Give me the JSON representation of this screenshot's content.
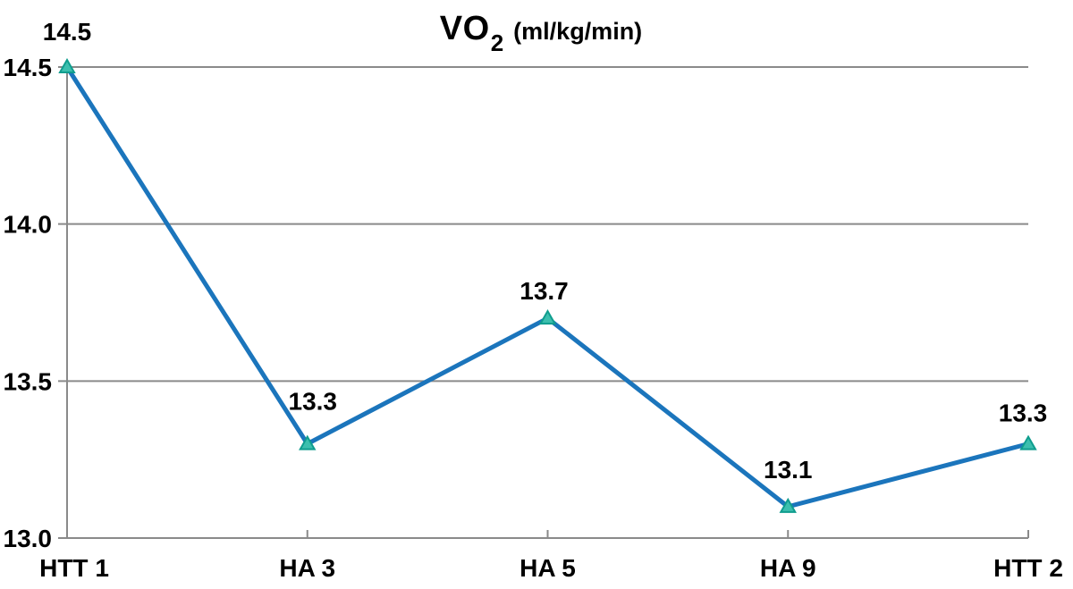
{
  "chart": {
    "title_main": "VO",
    "title_sub": "2",
    "title_unit": "(ml/kg/min)"
  },
  "chart_data": {
    "type": "line",
    "title": "VO2 (ml/kg/min)",
    "categories": [
      "HTT 1",
      "HA 3",
      "HA 5",
      "HA 9",
      "HTT 2"
    ],
    "values": [
      14.5,
      13.3,
      13.7,
      13.1,
      13.3
    ],
    "data_labels": [
      "14.5",
      "13.3",
      "13.7",
      "13.1",
      "13.3"
    ],
    "series": [
      {
        "name": "VO2 (ml/kg/min)",
        "values": [
          14.5,
          13.3,
          13.7,
          13.1,
          13.3
        ]
      }
    ],
    "xlabel": "",
    "ylabel": "",
    "ylim": [
      13.0,
      14.5
    ],
    "y_ticks": [
      13.0,
      13.5,
      14.0,
      14.5
    ],
    "y_tick_labels": [
      "13.0",
      "13.5",
      "14.0",
      "14.5"
    ],
    "grid": true,
    "legend": "none",
    "marker": "triangle-up",
    "colors": {
      "line": "#1b75bc",
      "marker_fill": "#3cbfae",
      "marker_stroke": "#0f9d8e",
      "grid": "#8a8a8a",
      "axis": "#8a8a8a",
      "text": "#000000"
    }
  }
}
